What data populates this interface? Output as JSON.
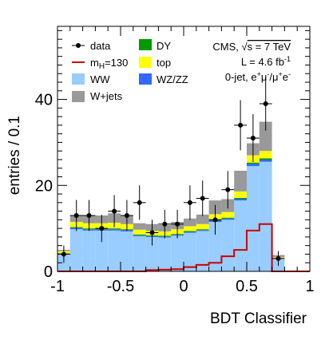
{
  "chart_data": {
    "type": "stacked-histogram",
    "bins": [
      -1.0,
      -0.9,
      -0.8,
      -0.7,
      -0.6,
      -0.5,
      -0.4,
      -0.3,
      -0.2,
      -0.1,
      0.0,
      0.1,
      0.2,
      0.3,
      0.4,
      0.5,
      0.6,
      0.7,
      0.8,
      0.9,
      1.0
    ],
    "xlim": [
      -1,
      1
    ],
    "ylim": [
      0,
      57
    ],
    "xticks": [
      "-1",
      "-0.5",
      "0",
      "0.5",
      "1"
    ],
    "xtick_values": [
      -1,
      -0.5,
      0,
      0.5,
      1
    ],
    "yticks": [
      "0",
      "20",
      "40"
    ],
    "ytick_values": [
      0,
      20,
      40
    ],
    "xlabel": "BDT Classifier",
    "ylabel": "entries / 0.1",
    "stack": [
      {
        "name": "WW",
        "color": "#99ccff",
        "values": [
          4,
          9.8,
          9.5,
          9.5,
          9.5,
          9.3,
          8.2,
          8.0,
          7.9,
          8.3,
          9.0,
          9.4,
          11.5,
          12.0,
          16.5,
          24.5,
          25.5,
          3.0,
          0,
          0
        ]
      },
      {
        "name": "WZ/ZZ",
        "color": "#3366ff",
        "values": [
          0.1,
          0.3,
          0.3,
          0.3,
          0.3,
          0.3,
          0.2,
          0.2,
          0.2,
          0.2,
          0.2,
          0.2,
          0.3,
          0.3,
          0.4,
          0.5,
          0.5,
          0.1,
          0,
          0
        ]
      },
      {
        "name": "DY",
        "color": "#009900",
        "values": [
          0.1,
          0.2,
          0.2,
          0.2,
          0.2,
          0.2,
          0.2,
          0.2,
          0.2,
          0.2,
          0.2,
          0.2,
          0.2,
          0.2,
          0.2,
          0.3,
          0.3,
          0.0,
          0,
          0
        ]
      },
      {
        "name": "top",
        "color": "#ffff00",
        "values": [
          0.5,
          1.2,
          1.2,
          1.2,
          1.3,
          1.2,
          1.1,
          1.0,
          1.0,
          1.1,
          1.1,
          1.2,
          1.3,
          1.3,
          1.5,
          1.7,
          1.7,
          0.2,
          0,
          0
        ]
      },
      {
        "name": "W+jets",
        "color": "#999999",
        "values": [
          0.3,
          1.5,
          1.8,
          1.8,
          2.2,
          2.0,
          1.5,
          1.6,
          1.5,
          1.7,
          1.8,
          2.2,
          3.2,
          3.0,
          4.8,
          2.8,
          6.8,
          0.5,
          0,
          0
        ]
      }
    ],
    "signal": {
      "name": "m_H=130",
      "color": "#cc0000",
      "values": [
        0,
        0,
        0,
        0,
        0,
        0,
        0,
        0.3,
        0.4,
        0.5,
        1.0,
        1.5,
        2.0,
        3.5,
        5.0,
        9.5,
        11.0,
        0,
        0,
        0
      ]
    },
    "data": {
      "name": "data",
      "x": [
        -0.95,
        -0.85,
        -0.75,
        -0.65,
        -0.55,
        -0.45,
        -0.35,
        -0.25,
        -0.15,
        -0.05,
        0.05,
        0.15,
        0.25,
        0.35,
        0.45,
        0.55,
        0.65,
        0.75
      ],
      "y": [
        4,
        13,
        13,
        10,
        14,
        13,
        16,
        9,
        11,
        11,
        16,
        17,
        12,
        19,
        34,
        31,
        39,
        3
      ]
    },
    "legend": {
      "data": "data",
      "signal_prefix": "m",
      "signal_sub": "H",
      "signal_suffix": "=130",
      "ww": "WW",
      "wjets": "W+jets",
      "dy": "DY",
      "top": "top",
      "wzzz": "WZ/ZZ"
    },
    "info": {
      "experiment_prefix": "CMS, ",
      "sqrt_s": "s = 7 TeV",
      "lumi_prefix": "L = 4.6 fb",
      "lumi_sup": "-1",
      "channel": "0-jet, e",
      "channel_sup1": "+",
      "channel_mid": "μ",
      "channel_sup2": "-",
      "channel_slash": "/μ",
      "channel_sup3": "+",
      "channel_e": "e",
      "channel_sup4": "-"
    }
  }
}
